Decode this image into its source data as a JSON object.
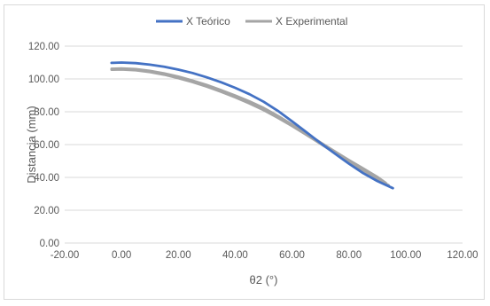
{
  "chart_data": {
    "type": "scatter",
    "title": "",
    "xlabel": "θ2 (°)",
    "ylabel": "Distancia (mm)",
    "xlim": [
      -20,
      120
    ],
    "ylim": [
      0,
      120
    ],
    "x_ticks": [
      "-20.00",
      "0.00",
      "20.00",
      "40.00",
      "60.00",
      "80.00",
      "100.00",
      "120.00"
    ],
    "y_ticks": [
      "0.00",
      "20.00",
      "40.00",
      "60.00",
      "80.00",
      "100.00",
      "120.00"
    ],
    "grid": "horizontal",
    "legend_position": "top",
    "series": [
      {
        "name": "X Teórico",
        "color": "#4472c4",
        "x": [
          -3.5,
          0,
          5,
          10,
          15,
          20,
          25,
          30,
          35,
          40,
          45,
          50,
          55,
          60,
          65,
          70,
          75,
          80,
          85,
          90,
          95.5
        ],
        "y": [
          109.8,
          110.0,
          109.6,
          108.7,
          107.4,
          105.7,
          103.6,
          101.0,
          98.0,
          94.6,
          90.7,
          86.1,
          80.6,
          74.2,
          67.6,
          61.0,
          54.6,
          48.4,
          42.6,
          37.8,
          33.4
        ]
      },
      {
        "name": "X Experimental",
        "color": "#a5a5a5",
        "x": [
          -3.5,
          0,
          5,
          10,
          15,
          20,
          25,
          30,
          35,
          40,
          45,
          50,
          55,
          60,
          65,
          70,
          75,
          80,
          85,
          90,
          93
        ],
        "y": [
          106.2,
          106.4,
          106.0,
          104.9,
          103.4,
          101.4,
          99.0,
          96.3,
          93.2,
          89.9,
          86.3,
          82.3,
          77.5,
          72.2,
          66.8,
          61.3,
          55.9,
          50.6,
          45.5,
          40.3,
          36.6
        ]
      },
      {
        "name": "",
        "color": "#a5a5a5",
        "x": [
          -3.5,
          0,
          5,
          10,
          15,
          20,
          25,
          30,
          35,
          40,
          45,
          50,
          55,
          60,
          65,
          70,
          75,
          80,
          85,
          90,
          94
        ],
        "y": [
          105.6,
          105.8,
          105.3,
          104.2,
          102.6,
          100.5,
          98.1,
          95.3,
          92.2,
          88.8,
          85.1,
          81.0,
          76.3,
          71.3,
          66.0,
          60.5,
          55.0,
          49.6,
          44.3,
          39.1,
          35.2
        ]
      }
    ]
  }
}
